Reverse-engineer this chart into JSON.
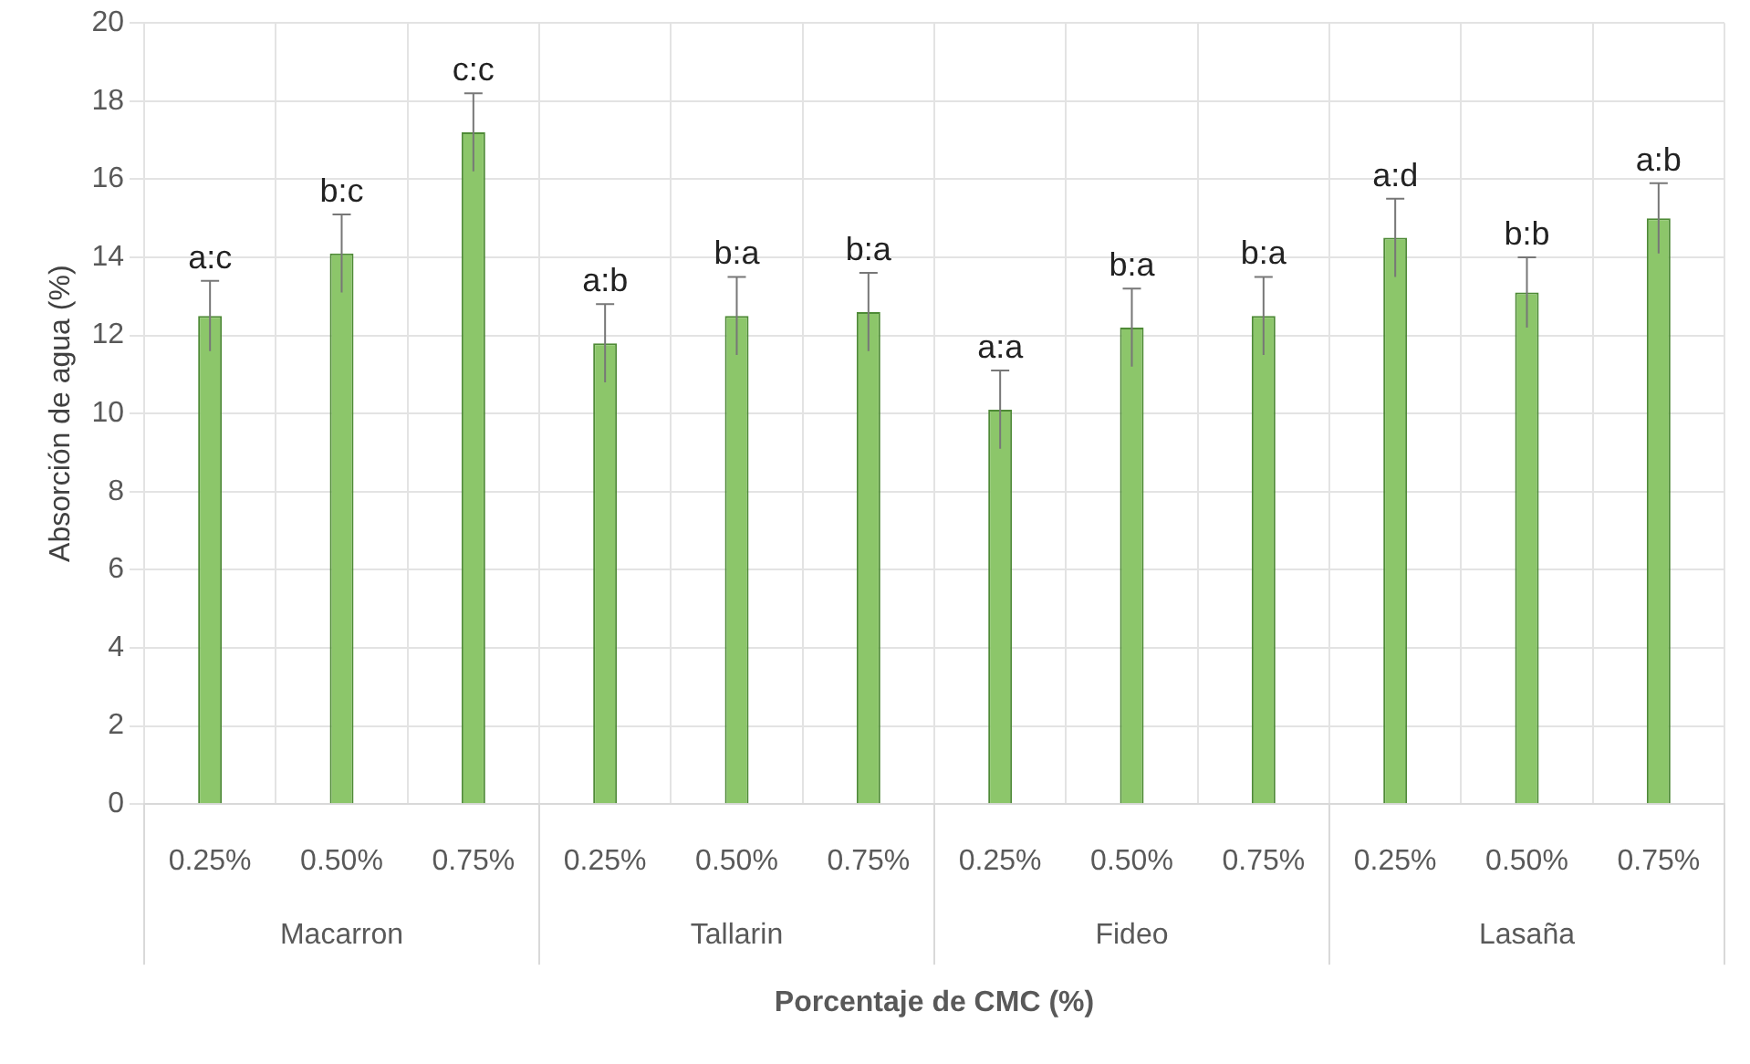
{
  "chart_data": {
    "type": "bar",
    "xlabel": "Porcentaje de CMC (%)",
    "ylabel": "Absorción de agua (%)",
    "categories": [
      "0.25%",
      "0.50%",
      "0.75%",
      "0.25%",
      "0.50%",
      "0.75%",
      "0.25%",
      "0.50%",
      "0.75%",
      "0.25%",
      "0.50%",
      "0.75%"
    ],
    "annotations": [
      "Macarron",
      "Tallarin",
      "Fideo",
      "Lasaña"
    ],
    "series": [
      {
        "color": "#8cc66a",
        "values": [
          12.5,
          14.1,
          17.2,
          11.8,
          12.5,
          12.6,
          10.1,
          12.2,
          12.5,
          14.5,
          13.1,
          15.0
        ],
        "errors": [
          0.9,
          1.0,
          1.0,
          1.0,
          1.0,
          1.0,
          1.0,
          1.0,
          1.0,
          1.0,
          0.9,
          0.9
        ],
        "value_labels": [
          "a:c",
          "b:c",
          "c:c",
          "a:b",
          "b:a",
          "b:a",
          "a:a",
          "b:a",
          "b:a",
          "a:d",
          "b:b",
          "a:b"
        ]
      }
    ],
    "ylim": [
      0,
      20
    ],
    "yticks": [
      0,
      2,
      4,
      6,
      8,
      10,
      12,
      14,
      16,
      18,
      20
    ],
    "grid": true,
    "legend": false
  }
}
